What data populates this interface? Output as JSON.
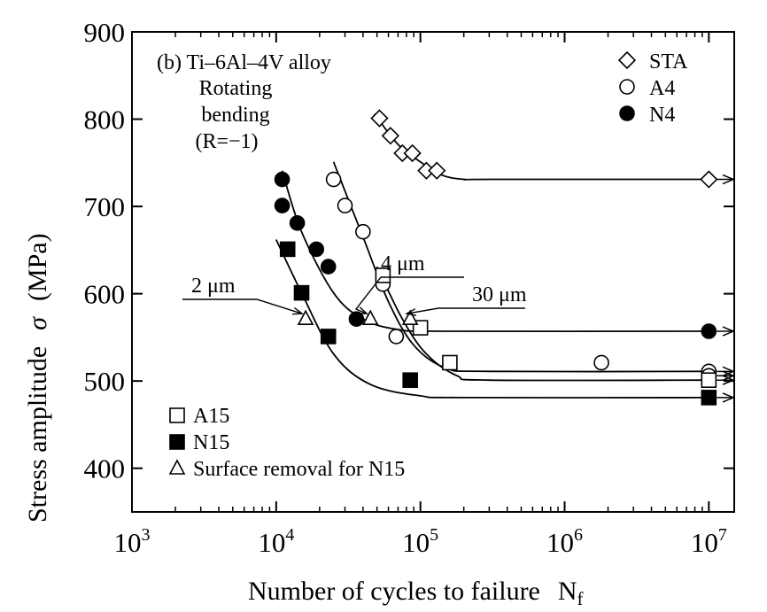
{
  "chart_data": {
    "type": "scatter",
    "panel_title": "(b) Ti–6Al–4V alloy",
    "test_condition": [
      "Rotating",
      "bending",
      "(R=−1)"
    ],
    "xlabel": "Number of cycles to failure",
    "xlabel_symbol": "N",
    "xlabel_subscript": "f",
    "ylabel": "Stress amplitude",
    "ylabel_symbol": "σ",
    "ylabel_unit": "(MPa)",
    "x_scale": "log",
    "xlim": [
      1000,
      15000000
    ],
    "ylim": [
      350,
      900
    ],
    "x_ticks": [
      {
        "value": 1000,
        "base": "10",
        "exp": "3"
      },
      {
        "value": 10000,
        "base": "10",
        "exp": "4"
      },
      {
        "value": 100000,
        "base": "10",
        "exp": "5"
      },
      {
        "value": 1000000,
        "base": "10",
        "exp": "6"
      },
      {
        "value": 10000000,
        "base": "10",
        "exp": "7"
      }
    ],
    "y_ticks": [
      400,
      500,
      600,
      700,
      800,
      900
    ],
    "grid": false,
    "series": [
      {
        "name": "STA",
        "marker": "diamond",
        "filled": false,
        "legend": "top-right",
        "points": [
          [
            52000,
            801
          ],
          [
            62000,
            781
          ],
          [
            75000,
            761
          ],
          [
            88000,
            761
          ],
          [
            110000,
            741
          ],
          [
            130000,
            741
          ]
        ],
        "runouts": [
          [
            10000000,
            731
          ]
        ]
      },
      {
        "name": "A4",
        "marker": "circle",
        "filled": false,
        "legend": "top-right",
        "points": [
          [
            25000,
            731
          ],
          [
            30000,
            701
          ],
          [
            40000,
            671
          ],
          [
            55000,
            611
          ],
          [
            68000,
            551
          ],
          [
            1800000,
            521
          ]
        ],
        "runouts": [
          [
            10000000,
            511
          ],
          [
            10000000,
            506
          ]
        ]
      },
      {
        "name": "N4",
        "marker": "circle",
        "filled": true,
        "legend": "top-right",
        "points": [
          [
            11000,
            731
          ],
          [
            11000,
            701
          ],
          [
            14000,
            681
          ],
          [
            19000,
            651
          ],
          [
            23000,
            631
          ],
          [
            36000,
            571
          ]
        ],
        "runouts": [
          [
            10000000,
            557
          ]
        ]
      },
      {
        "name": "A15",
        "marker": "square",
        "filled": false,
        "legend": "bottom-left",
        "points": [
          [
            55000,
            621
          ],
          [
            100000,
            561
          ],
          [
            160000,
            521
          ]
        ],
        "runouts": [
          [
            10000000,
            501
          ]
        ]
      },
      {
        "name": "N15",
        "marker": "square",
        "filled": true,
        "legend": "bottom-left",
        "points": [
          [
            12000,
            651
          ],
          [
            15000,
            601
          ],
          [
            23000,
            551
          ],
          [
            85000,
            501
          ]
        ],
        "runouts": [
          [
            10000000,
            481
          ]
        ]
      },
      {
        "name": "Surface removal for N15",
        "marker": "triangle",
        "filled": false,
        "legend": "bottom-left",
        "points": [
          [
            16000,
            571
          ],
          [
            45000,
            571
          ],
          [
            85000,
            571
          ]
        ],
        "runouts": []
      }
    ],
    "fit_curves": [
      {
        "points": [
          [
            48000,
            806
          ],
          [
            70000,
            771
          ],
          [
            100000,
            751
          ],
          [
            140000,
            736
          ],
          [
            200000,
            731
          ],
          [
            300000,
            731
          ],
          [
            10000000,
            731
          ]
        ]
      },
      {
        "points": [
          [
            10000,
            662
          ],
          [
            15000,
            601
          ],
          [
            25000,
            531
          ],
          [
            45000,
            496
          ],
          [
            100000,
            483
          ],
          [
            200000,
            481
          ],
          [
            10000000,
            481
          ]
        ]
      },
      {
        "points": [
          [
            11000,
            741
          ],
          [
            15000,
            671
          ],
          [
            25000,
            601
          ],
          [
            40000,
            571
          ],
          [
            70000,
            559
          ],
          [
            150000,
            557
          ],
          [
            10000000,
            557
          ]
        ]
      },
      {
        "points": [
          [
            25000,
            751
          ],
          [
            40000,
            665
          ],
          [
            60000,
            591
          ],
          [
            90000,
            541
          ],
          [
            150000,
            515
          ],
          [
            300000,
            511
          ],
          [
            10000000,
            511
          ]
        ]
      },
      {
        "points": [
          [
            50000,
            631
          ],
          [
            75000,
            571
          ],
          [
            110000,
            531
          ],
          [
            180000,
            506
          ],
          [
            300000,
            501
          ],
          [
            10000000,
            501
          ]
        ]
      }
    ],
    "annotations": [
      {
        "text": "2 μm",
        "points_to": [
          16000,
          571
        ]
      },
      {
        "text": "4 μm",
        "points_to": [
          45000,
          571
        ]
      },
      {
        "text": "30 μm",
        "points_to": [
          85000,
          571
        ]
      }
    ]
  }
}
